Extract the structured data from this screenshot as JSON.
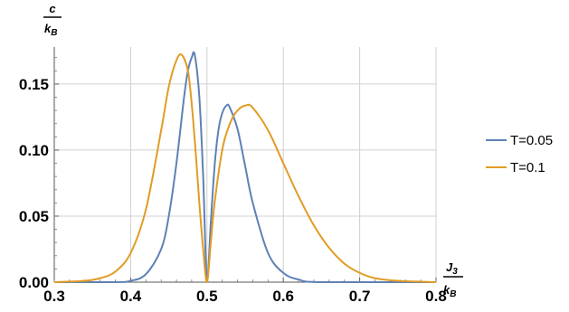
{
  "chart_data": {
    "type": "line",
    "title": "",
    "xlabel": {
      "num_main": "J",
      "num_sub": "3",
      "den_main": "k",
      "den_sub": "B"
    },
    "ylabel": {
      "num": "c",
      "den_main": "k",
      "den_sub": "B"
    },
    "xlim": [
      0.3,
      0.8
    ],
    "ylim": [
      0,
      0.178
    ],
    "x_ticks": [
      0.3,
      0.4,
      0.5,
      0.6,
      0.7,
      0.8
    ],
    "x_tick_labels": [
      "0.3",
      "0.4",
      "0.5",
      "0.6",
      "0.7",
      "0.8"
    ],
    "y_ticks": [
      0.0,
      0.05,
      0.1,
      0.15
    ],
    "y_tick_labels": [
      "0.00",
      "0.05",
      "0.10",
      "0.15"
    ],
    "grid": true,
    "legend_position": "right",
    "series": [
      {
        "name": "T=0.05",
        "color": "#5e81b5",
        "x": [
          0.3,
          0.38,
          0.4,
          0.42,
          0.44,
          0.45,
          0.46,
          0.47,
          0.475,
          0.48,
          0.484,
          0.49,
          0.495,
          0.5,
          0.505,
          0.51,
          0.515,
          0.52,
          0.526,
          0.53,
          0.54,
          0.55,
          0.56,
          0.58,
          0.6,
          0.62,
          0.65,
          0.8
        ],
        "y": [
          0.0,
          0.0,
          0.001,
          0.006,
          0.025,
          0.05,
          0.09,
          0.14,
          0.16,
          0.17,
          0.172,
          0.14,
          0.08,
          0.0,
          0.045,
          0.088,
          0.115,
          0.128,
          0.134,
          0.132,
          0.116,
          0.088,
          0.06,
          0.022,
          0.007,
          0.002,
          0.0,
          0.0
        ]
      },
      {
        "name": "T=0.1",
        "color": "#e19c24",
        "x": [
          0.3,
          0.34,
          0.36,
          0.38,
          0.4,
          0.42,
          0.44,
          0.45,
          0.46,
          0.467,
          0.475,
          0.48,
          0.485,
          0.49,
          0.495,
          0.5,
          0.505,
          0.51,
          0.52,
          0.53,
          0.54,
          0.552,
          0.56,
          0.58,
          0.6,
          0.62,
          0.64,
          0.66,
          0.68,
          0.7,
          0.72,
          0.75,
          0.8
        ],
        "y": [
          0.0,
          0.001,
          0.003,
          0.008,
          0.022,
          0.055,
          0.115,
          0.148,
          0.168,
          0.172,
          0.16,
          0.135,
          0.1,
          0.06,
          0.025,
          0.0,
          0.03,
          0.06,
          0.1,
          0.12,
          0.13,
          0.134,
          0.132,
          0.115,
          0.09,
          0.065,
          0.043,
          0.026,
          0.014,
          0.007,
          0.003,
          0.001,
          0.0
        ]
      }
    ]
  }
}
